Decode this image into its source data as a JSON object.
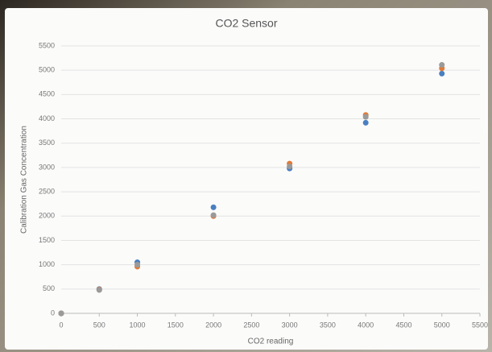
{
  "chart_data": {
    "type": "scatter",
    "title": "CO2 Sensor",
    "x_label": "CO2 reading",
    "y_label": "Calibration Gas Concentration",
    "x": [
      0,
      500,
      1000,
      2000,
      3000,
      4000,
      5000
    ],
    "series": [
      {
        "color": "#4a7fc1",
        "values": [
          0,
          500,
          1050,
          2180,
          2980,
          3920,
          4930
        ]
      },
      {
        "color": "#e07b39",
        "values": [
          0,
          490,
          960,
          2000,
          3080,
          4080,
          5040
        ]
      },
      {
        "color": "#9a9a9a",
        "values": [
          0,
          480,
          1000,
          2020,
          3020,
          4040,
          5110
        ]
      }
    ],
    "xlim": [
      0,
      5500
    ],
    "xticks": [
      0,
      500,
      1000,
      1500,
      2000,
      2500,
      3000,
      3500,
      4000,
      4500,
      5000,
      5500
    ],
    "ylim": [
      0,
      5500
    ],
    "yticks": [
      0,
      500,
      1000,
      1500,
      2000,
      2500,
      3000,
      3500,
      4000,
      4500,
      5000,
      5500
    ],
    "grid": true
  }
}
